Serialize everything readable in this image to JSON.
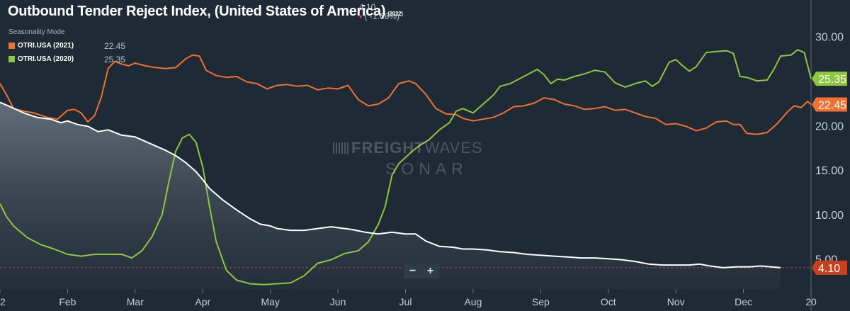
{
  "title": "Outbound Tender Reject Index, (United States of America)",
  "title_year": "(2022)",
  "quote": {
    "value": "4.10",
    "change": "( -1.68%)",
    "change_color": "#e03a3a"
  },
  "seasonality_label": "Seasonality Mode",
  "legend": [
    {
      "name": "OTRI.USA (2021)",
      "value": "22.45",
      "color": "#f07030"
    },
    {
      "name": "OTRI.USA (2020)",
      "value": "25.35",
      "color": "#8dc63f"
    }
  ],
  "zoom": {
    "minus": "−",
    "plus": "+"
  },
  "watermark": {
    "freight": "FREIGHT",
    "waves": "WAVES",
    "sonar": "SONAR"
  },
  "colors": {
    "background": "#1e2a35",
    "series_2022": "#ffffff",
    "series_2021": "#f07030",
    "series_2020": "#8dc63f",
    "reference_line": "#c04040"
  },
  "chart_data": {
    "type": "line",
    "x_unit": "month (fractional, Jan = 0)",
    "xlim": [
      0,
      12
    ],
    "ylim": [
      1.7,
      34.2
    ],
    "y_ticks": [
      "5.00",
      "10.00",
      "15.00",
      "20.00",
      "25.00",
      "30.00"
    ],
    "y_tick_values": [
      5,
      10,
      15,
      20,
      25,
      30
    ],
    "x_tick_labels": [
      "22",
      "Feb",
      "Mar",
      "Apr",
      "May",
      "Jun",
      "Jul",
      "Aug",
      "Sep",
      "Oct",
      "Nov",
      "Dec",
      "20"
    ],
    "x_tick_positions": [
      0,
      1,
      2,
      3,
      4,
      5,
      6,
      7,
      8,
      9,
      10,
      11,
      12
    ],
    "grid": false,
    "legend_position": "top-left",
    "reference_line": {
      "value": 4.1
    },
    "end_labels": [
      {
        "series": "OTRI.USA (2020)",
        "text": "25.35",
        "value": 25.35,
        "color": "#8dc63f"
      },
      {
        "series": "OTRI.USA (2021)",
        "text": "22.45",
        "value": 22.45,
        "color": "#f07030"
      },
      {
        "series": "OTRI.USA (2022)",
        "text": "4.10",
        "value": 4.1,
        "color": "#c8401e"
      }
    ],
    "series": [
      {
        "name": "OTRI.USA (2022)",
        "color": "#ffffff",
        "area": true,
        "points": [
          [
            0,
            22.7
          ],
          [
            0.15,
            22.2
          ],
          [
            0.35,
            21.5
          ],
          [
            0.55,
            21.0
          ],
          [
            0.75,
            20.8
          ],
          [
            0.9,
            20.4
          ],
          [
            1.0,
            20.6
          ],
          [
            1.15,
            20.2
          ],
          [
            1.3,
            20.0
          ],
          [
            1.45,
            19.4
          ],
          [
            1.6,
            19.6
          ],
          [
            1.8,
            19.0
          ],
          [
            2.0,
            18.8
          ],
          [
            2.15,
            18.3
          ],
          [
            2.3,
            17.8
          ],
          [
            2.45,
            17.3
          ],
          [
            2.6,
            16.7
          ],
          [
            2.75,
            15.9
          ],
          [
            2.9,
            14.9
          ],
          [
            3.0,
            14.0
          ],
          [
            3.1,
            13.0
          ],
          [
            3.3,
            11.7
          ],
          [
            3.5,
            10.6
          ],
          [
            3.7,
            9.6
          ],
          [
            3.85,
            9.0
          ],
          [
            4.0,
            8.8
          ],
          [
            4.1,
            8.5
          ],
          [
            4.3,
            8.3
          ],
          [
            4.5,
            8.3
          ],
          [
            4.7,
            8.5
          ],
          [
            4.9,
            8.7
          ],
          [
            5.0,
            8.6
          ],
          [
            5.2,
            8.4
          ],
          [
            5.4,
            8.1
          ],
          [
            5.6,
            7.9
          ],
          [
            5.8,
            8.1
          ],
          [
            6.0,
            7.9
          ],
          [
            6.15,
            7.9
          ],
          [
            6.3,
            7.1
          ],
          [
            6.5,
            6.5
          ],
          [
            6.7,
            6.4
          ],
          [
            6.85,
            6.2
          ],
          [
            7.0,
            6.2
          ],
          [
            7.2,
            6.1
          ],
          [
            7.4,
            5.9
          ],
          [
            7.6,
            5.8
          ],
          [
            7.8,
            5.6
          ],
          [
            8.0,
            5.5
          ],
          [
            8.2,
            5.4
          ],
          [
            8.4,
            5.3
          ],
          [
            8.6,
            5.2
          ],
          [
            8.8,
            5.2
          ],
          [
            9.0,
            5.1
          ],
          [
            9.2,
            5.0
          ],
          [
            9.4,
            4.8
          ],
          [
            9.6,
            4.5
          ],
          [
            9.8,
            4.4
          ],
          [
            10.0,
            4.4
          ],
          [
            10.2,
            4.4
          ],
          [
            10.35,
            4.5
          ],
          [
            10.5,
            4.3
          ],
          [
            10.7,
            4.1
          ],
          [
            10.9,
            4.2
          ],
          [
            11.1,
            4.2
          ],
          [
            11.25,
            4.3
          ],
          [
            11.4,
            4.2
          ],
          [
            11.55,
            4.1
          ]
        ]
      },
      {
        "name": "OTRI.USA (2021)",
        "color": "#f07030",
        "area": false,
        "points": [
          [
            0,
            24.8
          ],
          [
            0.1,
            23.5
          ],
          [
            0.2,
            22.0
          ],
          [
            0.35,
            21.7
          ],
          [
            0.5,
            21.5
          ],
          [
            0.7,
            21.0
          ],
          [
            0.85,
            20.8
          ],
          [
            1.0,
            21.8
          ],
          [
            1.1,
            21.9
          ],
          [
            1.2,
            21.5
          ],
          [
            1.3,
            20.5
          ],
          [
            1.4,
            21.2
          ],
          [
            1.5,
            23.3
          ],
          [
            1.6,
            26.5
          ],
          [
            1.7,
            27.3
          ],
          [
            1.8,
            27.0
          ],
          [
            1.9,
            26.8
          ],
          [
            2.0,
            27.1
          ],
          [
            2.15,
            26.8
          ],
          [
            2.3,
            26.6
          ],
          [
            2.45,
            26.5
          ],
          [
            2.6,
            26.6
          ],
          [
            2.75,
            27.6
          ],
          [
            2.85,
            28.0
          ],
          [
            2.95,
            27.9
          ],
          [
            3.05,
            26.3
          ],
          [
            3.2,
            25.7
          ],
          [
            3.35,
            25.5
          ],
          [
            3.5,
            25.6
          ],
          [
            3.65,
            25.0
          ],
          [
            3.8,
            24.8
          ],
          [
            3.95,
            24.2
          ],
          [
            4.1,
            24.6
          ],
          [
            4.25,
            24.7
          ],
          [
            4.4,
            24.5
          ],
          [
            4.55,
            24.6
          ],
          [
            4.7,
            24.1
          ],
          [
            4.85,
            24.3
          ],
          [
            5.0,
            24.2
          ],
          [
            5.15,
            24.6
          ],
          [
            5.3,
            23.0
          ],
          [
            5.45,
            22.3
          ],
          [
            5.6,
            22.5
          ],
          [
            5.75,
            23.2
          ],
          [
            5.9,
            24.8
          ],
          [
            6.05,
            25.1
          ],
          [
            6.15,
            24.8
          ],
          [
            6.3,
            23.6
          ],
          [
            6.45,
            22.0
          ],
          [
            6.6,
            21.4
          ],
          [
            6.75,
            21.3
          ],
          [
            6.85,
            20.9
          ],
          [
            7.0,
            20.6
          ],
          [
            7.15,
            20.8
          ],
          [
            7.3,
            21.0
          ],
          [
            7.45,
            21.5
          ],
          [
            7.6,
            22.2
          ],
          [
            7.75,
            22.3
          ],
          [
            7.9,
            22.6
          ],
          [
            8.05,
            23.2
          ],
          [
            8.2,
            23.0
          ],
          [
            8.35,
            22.5
          ],
          [
            8.5,
            22.3
          ],
          [
            8.65,
            21.9
          ],
          [
            8.8,
            22.0
          ],
          [
            8.95,
            22.2
          ],
          [
            9.1,
            21.8
          ],
          [
            9.25,
            21.9
          ],
          [
            9.4,
            21.5
          ],
          [
            9.55,
            21.1
          ],
          [
            9.7,
            20.9
          ],
          [
            9.85,
            20.2
          ],
          [
            10.0,
            20.3
          ],
          [
            10.15,
            20.0
          ],
          [
            10.3,
            19.5
          ],
          [
            10.45,
            19.8
          ],
          [
            10.6,
            20.5
          ],
          [
            10.75,
            20.6
          ],
          [
            10.85,
            20.2
          ],
          [
            10.95,
            20.2
          ],
          [
            11.05,
            19.2
          ],
          [
            11.2,
            19.1
          ],
          [
            11.35,
            19.3
          ],
          [
            11.5,
            20.3
          ],
          [
            11.65,
            21.6
          ],
          [
            11.75,
            22.3
          ],
          [
            11.85,
            22.1
          ],
          [
            11.95,
            22.8
          ],
          [
            12.0,
            22.45
          ]
        ]
      },
      {
        "name": "OTRI.USA (2020)",
        "color": "#8dc63f",
        "area": false,
        "points": [
          [
            0,
            11.3
          ],
          [
            0.1,
            9.8
          ],
          [
            0.2,
            8.8
          ],
          [
            0.4,
            7.5
          ],
          [
            0.6,
            6.7
          ],
          [
            0.8,
            6.2
          ],
          [
            1.0,
            5.6
          ],
          [
            1.2,
            5.4
          ],
          [
            1.4,
            5.6
          ],
          [
            1.6,
            5.6
          ],
          [
            1.8,
            5.6
          ],
          [
            1.95,
            5.2
          ],
          [
            2.1,
            6.0
          ],
          [
            2.25,
            7.6
          ],
          [
            2.4,
            10.1
          ],
          [
            2.5,
            13.8
          ],
          [
            2.6,
            17.2
          ],
          [
            2.7,
            18.7
          ],
          [
            2.8,
            19.1
          ],
          [
            2.9,
            18.2
          ],
          [
            3.0,
            15.4
          ],
          [
            3.1,
            11.0
          ],
          [
            3.2,
            7.0
          ],
          [
            3.35,
            3.8
          ],
          [
            3.5,
            2.7
          ],
          [
            3.7,
            2.3
          ],
          [
            3.9,
            2.2
          ],
          [
            4.1,
            2.3
          ],
          [
            4.3,
            2.4
          ],
          [
            4.5,
            3.2
          ],
          [
            4.7,
            4.6
          ],
          [
            4.9,
            5.0
          ],
          [
            5.1,
            5.7
          ],
          [
            5.3,
            6.0
          ],
          [
            5.45,
            7.0
          ],
          [
            5.6,
            9.0
          ],
          [
            5.7,
            11.0
          ],
          [
            5.8,
            14.5
          ],
          [
            5.9,
            15.8
          ],
          [
            6.0,
            16.5
          ],
          [
            6.1,
            17.2
          ],
          [
            6.2,
            17.8
          ],
          [
            6.35,
            18.5
          ],
          [
            6.5,
            19.6
          ],
          [
            6.65,
            20.4
          ],
          [
            6.75,
            21.7
          ],
          [
            6.85,
            22.0
          ],
          [
            7.0,
            21.5
          ],
          [
            7.15,
            22.5
          ],
          [
            7.3,
            23.5
          ],
          [
            7.4,
            24.5
          ],
          [
            7.55,
            24.8
          ],
          [
            7.7,
            25.4
          ],
          [
            7.85,
            26.0
          ],
          [
            7.95,
            26.4
          ],
          [
            8.05,
            25.8
          ],
          [
            8.15,
            24.8
          ],
          [
            8.25,
            25.3
          ],
          [
            8.35,
            25.2
          ],
          [
            8.5,
            25.6
          ],
          [
            8.65,
            25.9
          ],
          [
            8.8,
            26.3
          ],
          [
            8.95,
            26.1
          ],
          [
            9.1,
            24.9
          ],
          [
            9.25,
            24.4
          ],
          [
            9.4,
            24.8
          ],
          [
            9.55,
            25.1
          ],
          [
            9.65,
            24.5
          ],
          [
            9.75,
            25.0
          ],
          [
            9.9,
            27.2
          ],
          [
            10.0,
            27.5
          ],
          [
            10.1,
            26.8
          ],
          [
            10.2,
            26.2
          ],
          [
            10.3,
            26.7
          ],
          [
            10.45,
            28.3
          ],
          [
            10.6,
            28.4
          ],
          [
            10.75,
            28.5
          ],
          [
            10.85,
            28.2
          ],
          [
            10.95,
            25.6
          ],
          [
            11.05,
            25.5
          ],
          [
            11.2,
            25.1
          ],
          [
            11.35,
            25.2
          ],
          [
            11.45,
            26.4
          ],
          [
            11.55,
            27.9
          ],
          [
            11.7,
            28.0
          ],
          [
            11.8,
            28.6
          ],
          [
            11.9,
            28.3
          ],
          [
            12.0,
            25.35
          ]
        ]
      }
    ]
  }
}
